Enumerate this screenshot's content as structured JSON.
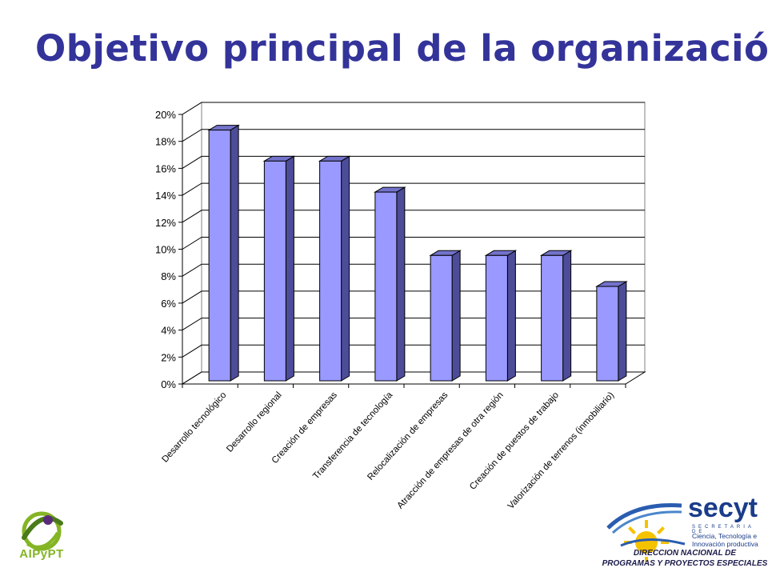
{
  "page": {
    "title": "Objetivo principal de la organización"
  },
  "chart_data": {
    "type": "bar",
    "title": "",
    "xlabel": "",
    "ylabel": "",
    "ylim": [
      0,
      20
    ],
    "y_tick_step": 2,
    "y_tick_format": "percent",
    "grid": true,
    "three_d": true,
    "legend": "none",
    "bar_color": "#9999ff",
    "categories": [
      "Desarrollo tecnológico",
      "Desarrollo regional",
      "Creación de empresas",
      "Transferencia de tecnología",
      "Relocalización de empresas",
      "Atracción de empresas de otra región",
      "Creación de puestos de trabajo",
      "Valorización de terrenos (inmobiliario)"
    ],
    "values": [
      18.6,
      16.3,
      16.3,
      14.0,
      9.3,
      9.3,
      9.3,
      7.0
    ]
  },
  "logos": {
    "left": {
      "name": "AIPyPT"
    },
    "right": {
      "name": "secyt",
      "tagline": "SECRETARIA DE",
      "subtitle_lines": [
        "Ciencia, Tecnología e",
        "Innovación productiva"
      ],
      "direction_lines": [
        "DIRECCION NACIONAL DE",
        "PROGRAMAS Y PROYECTOS ESPECIALES"
      ]
    }
  }
}
